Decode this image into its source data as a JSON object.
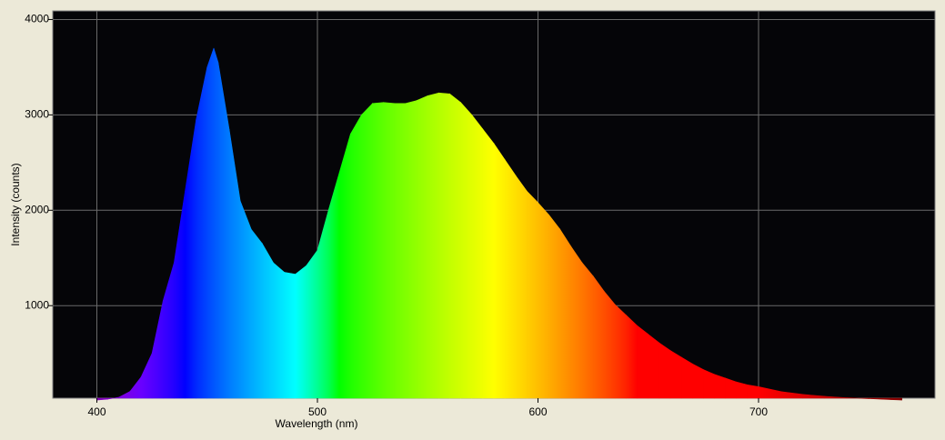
{
  "chart_data": {
    "type": "spectrum",
    "xlabel": "Wavelength (nm)",
    "ylabel": "Intensity (counts)",
    "x": [
      400,
      405,
      410,
      415,
      420,
      425,
      430,
      435,
      440,
      445,
      450,
      453,
      455,
      460,
      465,
      470,
      475,
      480,
      485,
      490,
      495,
      500,
      505,
      510,
      515,
      520,
      525,
      530,
      535,
      540,
      545,
      550,
      555,
      560,
      565,
      570,
      575,
      580,
      585,
      590,
      595,
      600,
      605,
      610,
      615,
      620,
      625,
      630,
      635,
      640,
      645,
      650,
      655,
      660,
      665,
      670,
      675,
      680,
      685,
      690,
      695,
      700,
      710,
      720,
      730,
      740,
      750,
      760,
      765
    ],
    "values": [
      10,
      20,
      40,
      100,
      250,
      500,
      1050,
      1450,
      2200,
      2950,
      3500,
      3700,
      3550,
      2850,
      2100,
      1800,
      1650,
      1450,
      1350,
      1330,
      1420,
      1580,
      2000,
      2400,
      2800,
      3000,
      3120,
      3130,
      3120,
      3120,
      3150,
      3200,
      3230,
      3220,
      3130,
      3000,
      2850,
      2700,
      2530,
      2360,
      2200,
      2080,
      1950,
      1800,
      1620,
      1450,
      1310,
      1150,
      1010,
      900,
      790,
      700,
      610,
      530,
      460,
      390,
      330,
      280,
      240,
      200,
      170,
      150,
      100,
      70,
      50,
      35,
      25,
      15,
      10
    ],
    "xlim": [
      380,
      780
    ],
    "ylim": [
      30,
      4090
    ],
    "xticks": [
      400,
      500,
      600,
      700
    ],
    "yticks": [
      1000,
      2000,
      3000,
      4000
    ],
    "grid": true
  }
}
